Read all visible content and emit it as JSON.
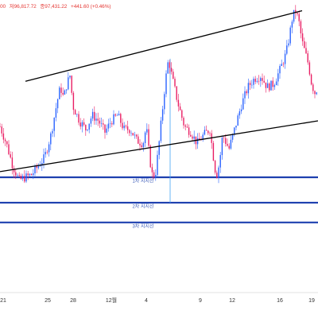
{
  "header": {
    "open_fragment": "00",
    "high": "저96,817.72",
    "close": "종97,431.22",
    "change": "+441.60 (+0.46%)"
  },
  "colors": {
    "up": "#26a69a",
    "down": "#ef5350",
    "candle_blue": "#2962ff",
    "candle_red": "#e91e63",
    "trendline": "#000000",
    "support": "#1e40af",
    "vertical_marker": "#42a5f5"
  },
  "chart_data": {
    "type": "line",
    "title": "",
    "xlabel": "",
    "ylabel": "",
    "x_ticks": [
      "21",
      "25",
      "28",
      "12월",
      "4",
      "9",
      "12",
      "16",
      "19"
    ],
    "x_index_range": [
      0,
      100
    ],
    "x_tick_index": [
      1,
      15,
      23,
      35,
      46,
      63,
      73,
      88,
      98
    ],
    "y_price_range": [
      0,
      100
    ],
    "price_series": [
      [
        0,
        58
      ],
      [
        2,
        52
      ],
      [
        4,
        44
      ],
      [
        6,
        39
      ],
      [
        8,
        40
      ],
      [
        10,
        41
      ],
      [
        12,
        44
      ],
      [
        14,
        47
      ],
      [
        16,
        55
      ],
      [
        18,
        67
      ],
      [
        19,
        72
      ],
      [
        20,
        68
      ],
      [
        21,
        73
      ],
      [
        22,
        76
      ],
      [
        23,
        65
      ],
      [
        25,
        60
      ],
      [
        27,
        57
      ],
      [
        29,
        62
      ],
      [
        31,
        60
      ],
      [
        33,
        56
      ],
      [
        35,
        60
      ],
      [
        37,
        62
      ],
      [
        39,
        57
      ],
      [
        41,
        57
      ],
      [
        43,
        53
      ],
      [
        45,
        52
      ],
      [
        46,
        58
      ],
      [
        47,
        47
      ],
      [
        48,
        40
      ],
      [
        49,
        42
      ],
      [
        50,
        52
      ],
      [
        51,
        63
      ],
      [
        52,
        74
      ],
      [
        53,
        82
      ],
      [
        54,
        76
      ],
      [
        56,
        66
      ],
      [
        58,
        58
      ],
      [
        60,
        56
      ],
      [
        62,
        52
      ],
      [
        64,
        55
      ],
      [
        66,
        57
      ],
      [
        67,
        48
      ],
      [
        68,
        40
      ],
      [
        69,
        45
      ],
      [
        70,
        55
      ],
      [
        72,
        50
      ],
      [
        74,
        58
      ],
      [
        76,
        66
      ],
      [
        78,
        72
      ],
      [
        80,
        75
      ],
      [
        82,
        76
      ],
      [
        84,
        72
      ],
      [
        86,
        73
      ],
      [
        88,
        78
      ],
      [
        90,
        84
      ],
      [
        91,
        90
      ],
      [
        92,
        97
      ],
      [
        93,
        99
      ],
      [
        94,
        95
      ],
      [
        95,
        88
      ],
      [
        96,
        84
      ],
      [
        97,
        80
      ],
      [
        98,
        73
      ],
      [
        99,
        70
      ],
      [
        100,
        72
      ]
    ],
    "trendlines": [
      {
        "from": [
          8,
          74
        ],
        "to": [
          95,
          99
        ]
      },
      {
        "from": [
          0,
          42
        ],
        "to": [
          100,
          60
        ]
      }
    ],
    "support_lines": [
      {
        "label": "1차 지지선",
        "level": 40
      },
      {
        "label": "2차 지지선",
        "level": 31
      },
      {
        "label": "3차 지지선",
        "level": 24
      }
    ],
    "vertical_marker_index": 53.5
  }
}
